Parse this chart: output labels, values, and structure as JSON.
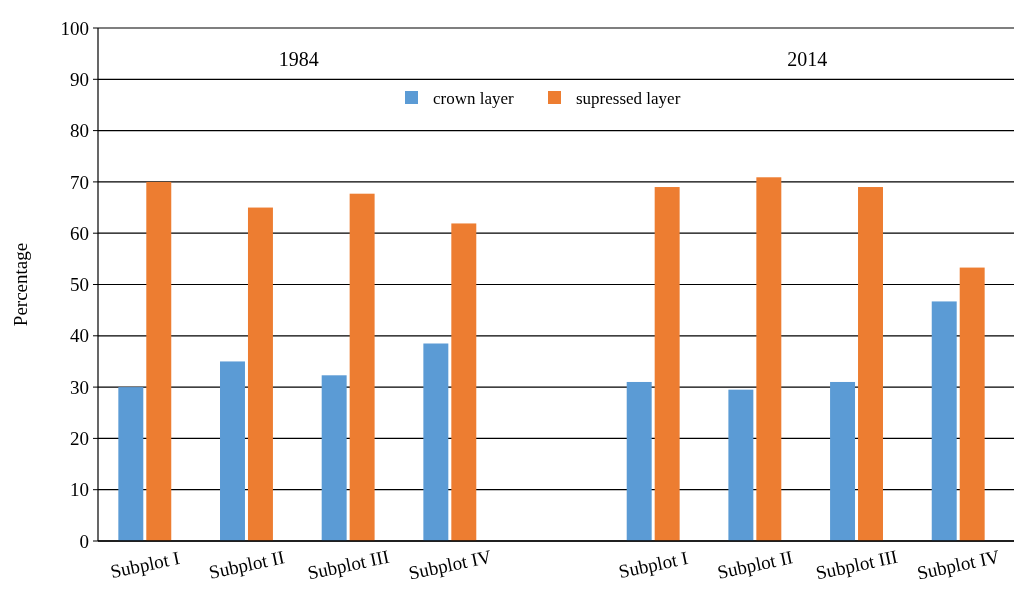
{
  "chart_data": {
    "type": "bar",
    "ylabel": "Percentage",
    "annotations": [
      "1984",
      "2014"
    ],
    "categories": [
      "Subplot I",
      "Subplot II",
      "Subplot III",
      "Subplot IV",
      null,
      "Subplot I",
      "Subplot II",
      "Subplot III",
      "Subplot IV"
    ],
    "series": [
      {
        "name": "crown layer",
        "color": "#5b9bd5",
        "values": [
          30,
          35,
          32.3,
          38.5,
          null,
          31,
          29.5,
          31,
          46.7
        ]
      },
      {
        "name": "supressed layer",
        "color": "#ed7d31",
        "values": [
          70,
          65,
          67.7,
          61.9,
          null,
          69,
          70.9,
          69,
          53.3
        ]
      }
    ],
    "ylim": [
      0,
      100
    ],
    "yticks": [
      0,
      10,
      20,
      30,
      40,
      50,
      60,
      70,
      80,
      90,
      100
    ],
    "grid": "y",
    "legend": "top"
  }
}
